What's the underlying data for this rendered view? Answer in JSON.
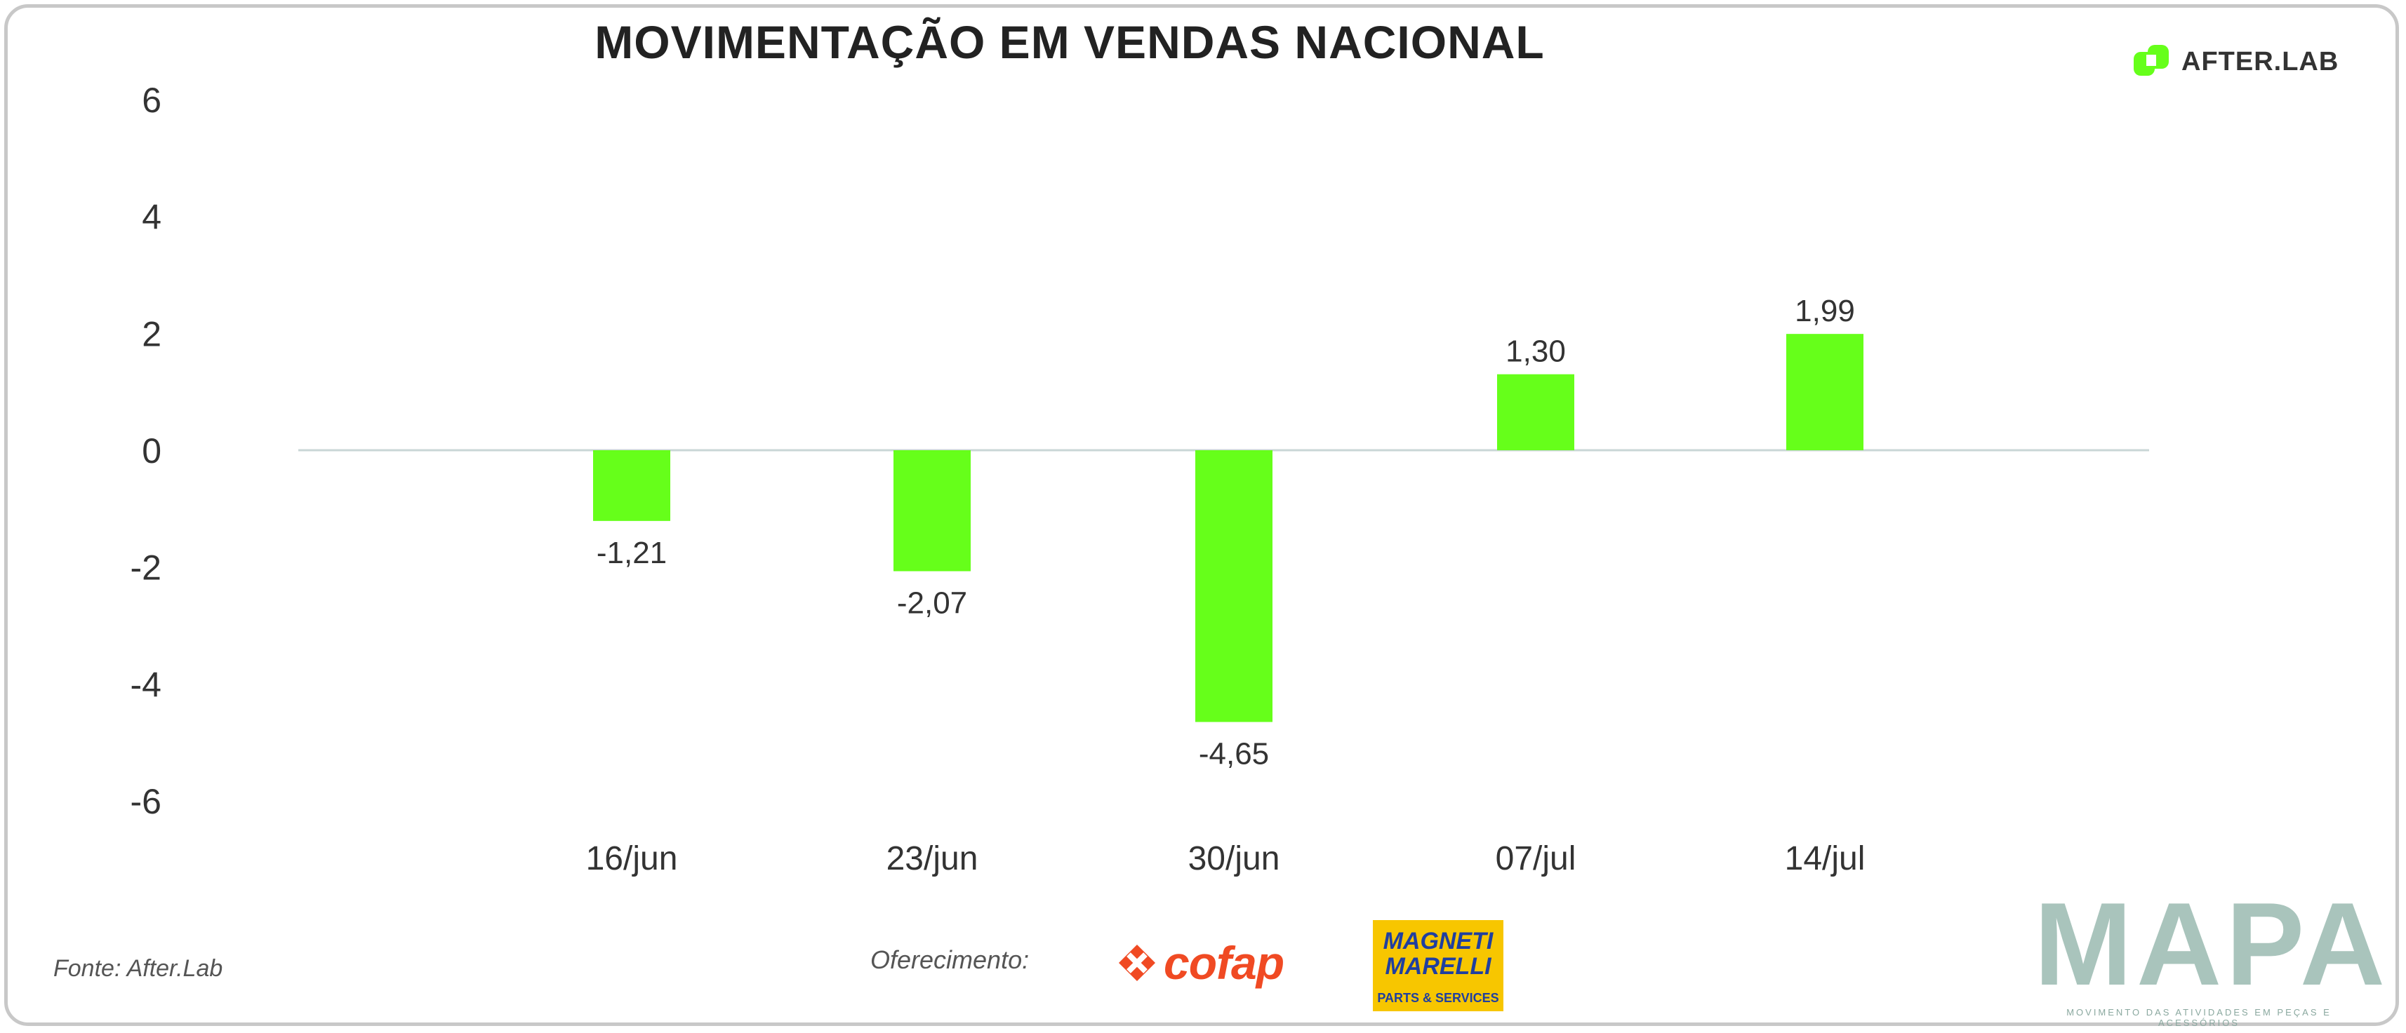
{
  "header": {
    "title": "MOVIMENTAÇÃO EM VENDAS NACIONAL",
    "brand_logo_text": "AFTER.LAB"
  },
  "footer": {
    "source": "Fonte: After.Lab",
    "sponsor_label": "Oferecimento:",
    "sponsor_1": "cofap",
    "sponsor_2_line1": "MAGNETI",
    "sponsor_2_line2": "MARELLI",
    "sponsor_2_sub": "PARTS & SERVICES",
    "mapa_logo": "MAPA",
    "mapa_tagline": "MOVIMENTO DAS ATIVIDADES EM PEÇAS E ACESSÓRIOS"
  },
  "colors": {
    "bar": "#66ff1a",
    "axis_text": "#333333",
    "zero_line": "#c9d6d6",
    "cofap": "#f04a23",
    "magneti_bg": "#f7c600",
    "magneti_text": "#1f3fa0",
    "mapa": "#a9c4bc"
  },
  "chart_data": {
    "type": "bar",
    "title": "MOVIMENTAÇÃO EM VENDAS NACIONAL",
    "categories": [
      "16/jun",
      "23/jun",
      "30/jun",
      "07/jul",
      "14/jul"
    ],
    "values": [
      -1.21,
      -2.07,
      -4.65,
      1.3,
      1.99
    ],
    "value_labels": [
      "-1,21",
      "-2,07",
      "-4,65",
      "1,30",
      "1,99"
    ],
    "yticks": [
      6,
      4,
      2,
      0,
      -2,
      -4,
      -6
    ],
    "ylim": [
      -6,
      6
    ],
    "xlabel": "",
    "ylabel": "",
    "grid": false,
    "legend": "none"
  }
}
